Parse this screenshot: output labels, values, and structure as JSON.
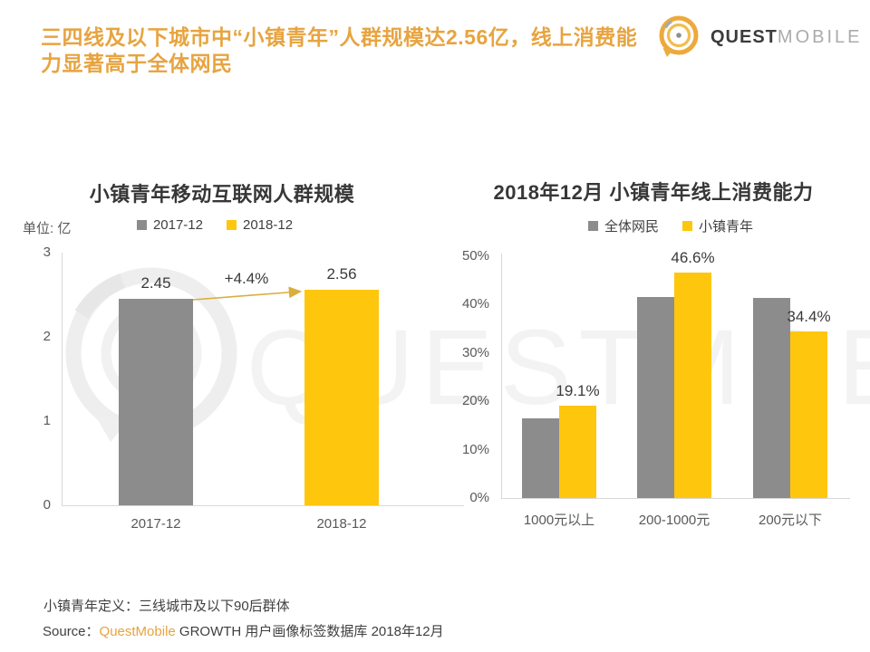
{
  "header": {
    "title_line1": "三四线及以下城市中“小镇青年”人群规模达2.56亿，线上消费能",
    "title_line2": "力显著高于全体网民"
  },
  "logo": {
    "icon": "questmobile-swirl-icon",
    "brand_primary": "QUEST",
    "brand_secondary": "MOBILE"
  },
  "watermark": {
    "text": "QUESTMOBILE"
  },
  "colors": {
    "accent_orange": "#E7A440",
    "source_orange": "#E8A33D",
    "bar_gray": "#8C8C8C",
    "bar_yellow": "#FFC60E",
    "axis_line": "#D9D9D9",
    "axis_text": "#595959",
    "text_dark": "#3A3A3A"
  },
  "chart_data": [
    {
      "type": "bar",
      "title": "小镇青年移动互联网人群规模",
      "unit_label": "单位: 亿",
      "legend": [
        "2017-12",
        "2018-12"
      ],
      "legend_position": "top",
      "categories": [
        "2017-12",
        "2018-12"
      ],
      "values": [
        2.45,
        2.56
      ],
      "value_labels": [
        "2.45",
        "2.56"
      ],
      "bar_colors": [
        "#8C8C8C",
        "#FFC60E"
      ],
      "growth_annotation": "+4.4%",
      "ylim": [
        0,
        3
      ],
      "yticks": [
        "0",
        "1",
        "2",
        "3"
      ],
      "grid": false
    },
    {
      "type": "bar",
      "title": "2018年12月 小镇青年线上消费能力",
      "legend": [
        "全体网民",
        "小镇青年"
      ],
      "legend_position": "top",
      "categories": [
        "1000元以上",
        "200-1000元",
        "200元以下"
      ],
      "series": [
        {
          "name": "全体网民",
          "color": "#8C8C8C",
          "values": [
            16.5,
            41.6,
            41.4
          ],
          "value_labels": [
            "",
            "",
            ""
          ]
        },
        {
          "name": "小镇青年",
          "color": "#FFC60E",
          "values": [
            19.1,
            46.6,
            34.4
          ],
          "value_labels": [
            "19.1%",
            "46.6%",
            "34.4%"
          ]
        }
      ],
      "ylim": [
        0,
        50
      ],
      "yticks": [
        "0%",
        "10%",
        "20%",
        "30%",
        "40%",
        "50%"
      ],
      "grid": false
    }
  ],
  "footer": {
    "definition": "小镇青年定义：三线城市及以下90后群体",
    "source_label": "Source：",
    "source_brand": "QuestMobile",
    "source_detail": " GROWTH 用户画像标签数据库 2018年12月"
  }
}
